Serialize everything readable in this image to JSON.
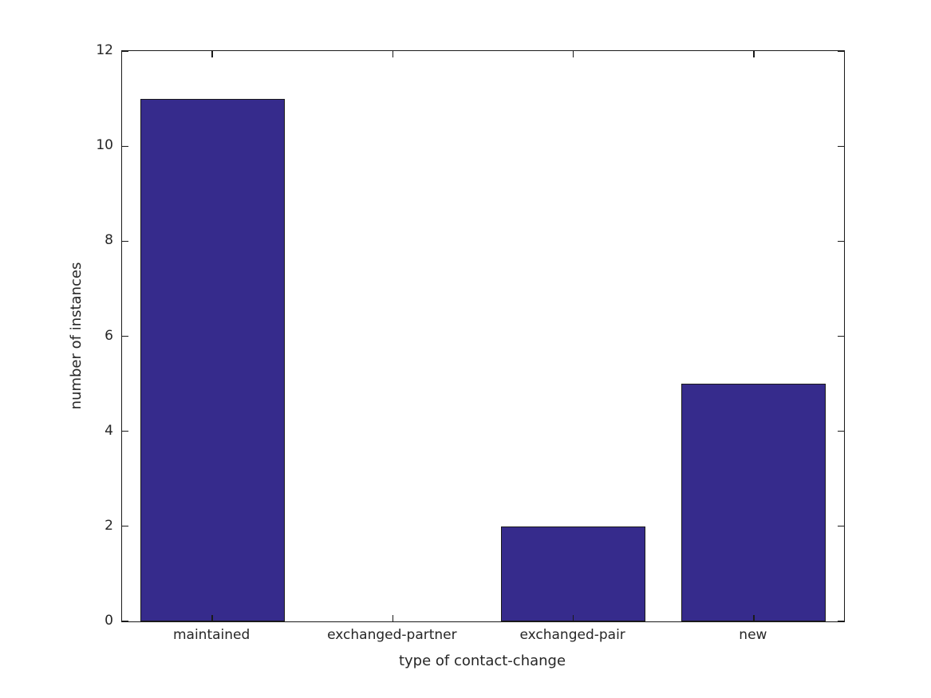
{
  "chart_data": {
    "type": "bar",
    "categories": [
      "maintained",
      "exchanged-partner",
      "exchanged-pair",
      "new"
    ],
    "values": [
      11,
      0,
      2,
      5
    ],
    "xlabel": "type of contact-change",
    "ylabel": "number of instances",
    "ylim": [
      0,
      12
    ],
    "yticks": [
      0,
      2,
      4,
      6,
      8,
      10,
      12
    ],
    "bar_color": "#362b8c",
    "bar_edge_color": "#1a1a1a",
    "axis_color": "#1a1a1a",
    "text_color": "#262626",
    "background_color": "#ffffff",
    "grid": false,
    "legend": "none",
    "bar_width_fraction": 0.8,
    "tick_direction": "in"
  }
}
